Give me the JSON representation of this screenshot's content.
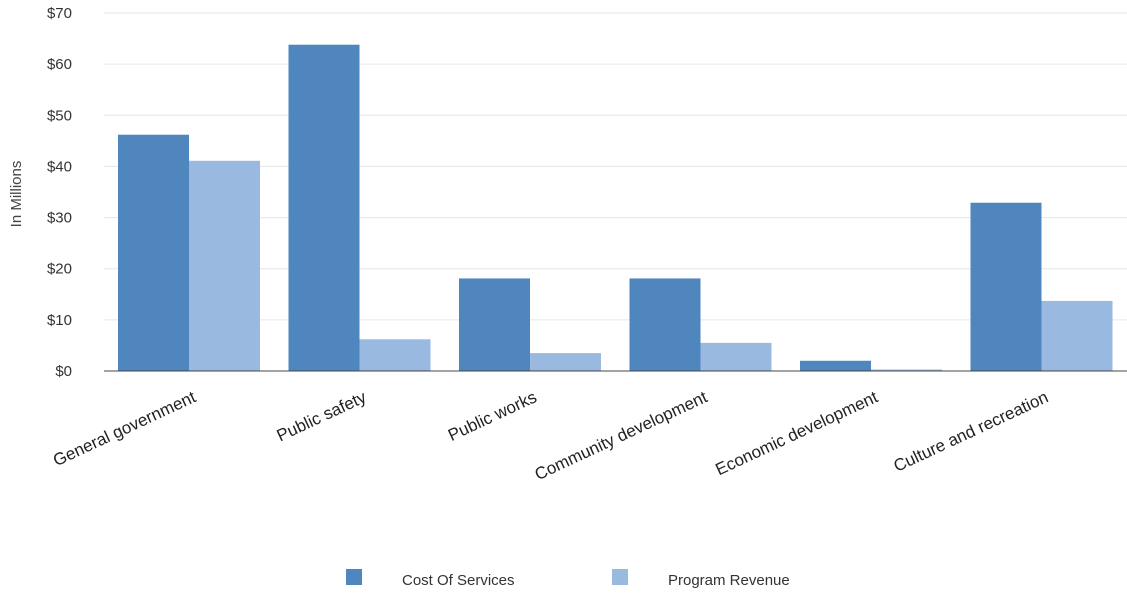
{
  "chart_data": {
    "type": "bar",
    "ylabel": "In Millions",
    "ylim": [
      0,
      70
    ],
    "yticks": [
      0,
      10,
      20,
      30,
      40,
      50,
      60,
      70
    ],
    "ytick_labels": [
      "$0",
      "$10",
      "$20",
      "$30",
      "$40",
      "$50",
      "$60",
      "$70"
    ],
    "grid": true,
    "legend_position": "bottom",
    "categories": [
      "General government",
      "Public safety",
      "Public works",
      "Community development",
      "Economic development",
      "Culture and recreation"
    ],
    "series": [
      {
        "name": "Cost Of Services",
        "color": "#4F86BD",
        "values": [
          46.2,
          63.8,
          18.1,
          18.1,
          2.0,
          32.9
        ]
      },
      {
        "name": "Program Revenue",
        "color": "#9AB9E1",
        "values": [
          41.1,
          6.2,
          3.5,
          5.5,
          0.3,
          13.7
        ]
      }
    ]
  }
}
